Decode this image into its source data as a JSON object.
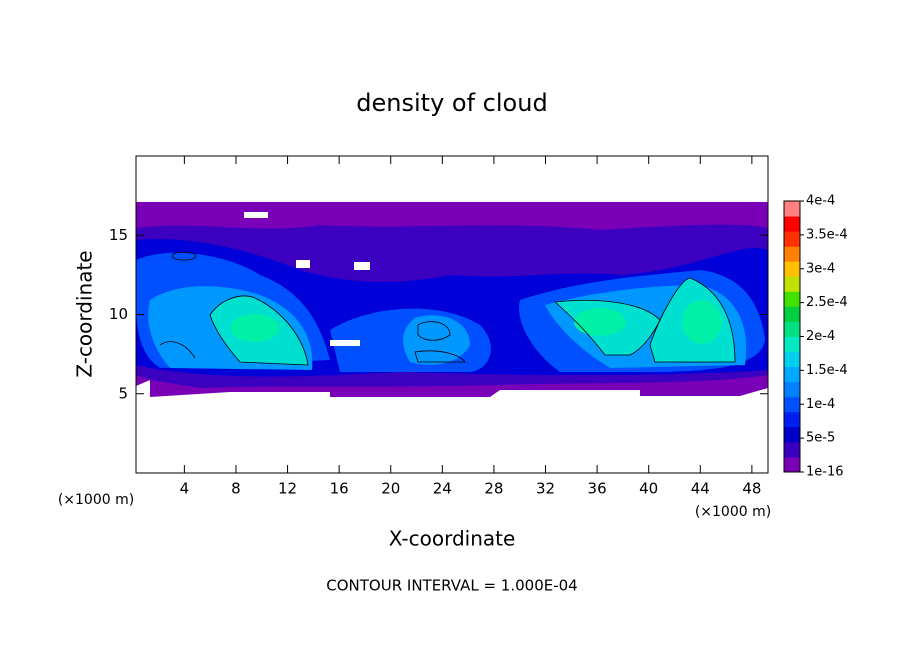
{
  "chart_data": {
    "type": "contour",
    "title": "density of cloud",
    "x_label": "X-coordinate",
    "y_label": "Z-coordinate",
    "x_unit_left": "(×1000 m)",
    "x_unit_right": "(×1000 m)",
    "footer": "CONTOUR INTERVAL = 1.000E-04",
    "xlim": [
      0.25,
      49.25
    ],
    "xticks": [
      4,
      8,
      12,
      16,
      20,
      24,
      28,
      32,
      36,
      40,
      44,
      48
    ],
    "ylim": [
      0,
      20
    ],
    "yticks": [
      5,
      10,
      15
    ],
    "colorbar": {
      "colors": [
        "#7a00b8",
        "#3c00c0",
        "#0000c8",
        "#0020f0",
        "#0050ff",
        "#0080ff",
        "#00a8ff",
        "#00d0f0",
        "#00e8c0",
        "#00e080",
        "#00d040",
        "#40e000",
        "#c0e000",
        "#ffc000",
        "#ff8000",
        "#ff3000",
        "#ff0000",
        "#ff8080"
      ],
      "ticks": [
        {
          "value": 1e-16,
          "label": "1e-16"
        },
        {
          "value": 5e-05,
          "label": "5e-5"
        },
        {
          "value": 0.0001,
          "label": "1e-4"
        },
        {
          "value": 0.00015,
          "label": "1.5e-4"
        },
        {
          "value": 0.0002,
          "label": "2e-4"
        },
        {
          "value": 0.00025,
          "label": "2.5e-4"
        },
        {
          "value": 0.0003,
          "label": "3e-4"
        },
        {
          "value": 0.00035,
          "label": "3.5e-4"
        },
        {
          "value": 0.0004,
          "label": "4e-4"
        }
      ]
    }
  }
}
